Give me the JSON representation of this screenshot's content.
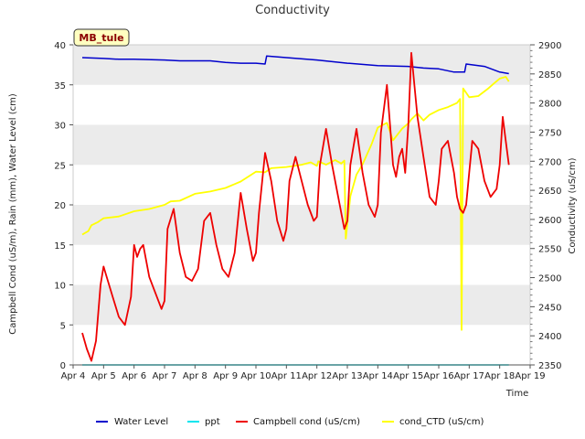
{
  "chart_data": {
    "type": "line",
    "title": "Conductivity",
    "station_label": "MB_tule",
    "xlabel": "Time",
    "ylabel_left": "Campbell Cond (uS/m), Rain (mm), Water Level (cm)",
    "ylabel_right": "Conductivity (uS/cm)",
    "x_range_days": [
      4,
      19
    ],
    "y_left_range": [
      0,
      40
    ],
    "y_right_range": [
      2350,
      2900
    ],
    "x_ticks": [
      {
        "day": 4,
        "label": "Apr 4"
      },
      {
        "day": 5,
        "label": "Apr 5"
      },
      {
        "day": 6,
        "label": "Apr 6"
      },
      {
        "day": 7,
        "label": "Apr 7"
      },
      {
        "day": 8,
        "label": "Apr 8"
      },
      {
        "day": 9,
        "label": "Apr 9"
      },
      {
        "day": 10,
        "label": "Apr 10"
      },
      {
        "day": 11,
        "label": "Apr 11"
      },
      {
        "day": 12,
        "label": "Apr 12"
      },
      {
        "day": 13,
        "label": "Apr 13"
      },
      {
        "day": 14,
        "label": "Apr 14"
      },
      {
        "day": 15,
        "label": "Apr 15"
      },
      {
        "day": 16,
        "label": "Apr 16"
      },
      {
        "day": 17,
        "label": "Apr 17"
      },
      {
        "day": 18,
        "label": "Apr 18"
      },
      {
        "day": 19,
        "label": "Apr 19"
      }
    ],
    "y_left_ticks": [
      0,
      5,
      10,
      15,
      20,
      25,
      30,
      35,
      40
    ],
    "y_right_ticks": [
      2350,
      2400,
      2450,
      2500,
      2550,
      2600,
      2650,
      2700,
      2750,
      2800,
      2850,
      2900
    ],
    "grid": "horizontal bands",
    "legend_position": "bottom",
    "colors": {
      "water_level": "#0000cc",
      "ppt": "#00e5ee",
      "campbell": "#ee0000",
      "cond_ctd": "#ffff00",
      "band": "#ebebeb",
      "station_bg": "#ffffc0"
    },
    "series": [
      {
        "name": "Water Level",
        "axis": "left",
        "color": "#0000cc",
        "x": [
          4.3,
          5.0,
          5.5,
          6.0,
          7.0,
          7.5,
          8.0,
          8.5,
          9.0,
          9.5,
          10.0,
          10.3,
          10.35,
          11.0,
          12.0,
          13.0,
          14.0,
          15.0,
          15.5,
          16.0,
          16.5,
          16.85,
          16.9,
          17.5,
          18.0,
          18.3
        ],
        "y": [
          38.4,
          38.3,
          38.2,
          38.2,
          38.1,
          38.0,
          38.0,
          38.0,
          37.8,
          37.7,
          37.7,
          37.6,
          38.6,
          38.4,
          38.1,
          37.7,
          37.4,
          37.3,
          37.1,
          37.0,
          36.6,
          36.6,
          37.6,
          37.3,
          36.6,
          36.4
        ]
      },
      {
        "name": "ppt",
        "axis": "left",
        "color": "#00e5ee",
        "x": [
          4.3,
          18.3
        ],
        "y": [
          0,
          0
        ]
      },
      {
        "name": "Campbell cond (uS/cm)",
        "axis": "left",
        "color": "#ee0000",
        "x": [
          4.3,
          4.45,
          4.6,
          4.75,
          4.9,
          5.0,
          5.1,
          5.3,
          5.5,
          5.7,
          5.9,
          6.0,
          6.1,
          6.2,
          6.3,
          6.5,
          6.7,
          6.9,
          7.0,
          7.1,
          7.3,
          7.5,
          7.7,
          7.9,
          8.1,
          8.3,
          8.5,
          8.7,
          8.9,
          9.1,
          9.3,
          9.5,
          9.7,
          9.9,
          10.0,
          10.1,
          10.3,
          10.5,
          10.7,
          10.9,
          11.0,
          11.1,
          11.3,
          11.5,
          11.7,
          11.9,
          12.0,
          12.1,
          12.3,
          12.5,
          12.7,
          12.9,
          13.0,
          13.1,
          13.3,
          13.5,
          13.7,
          13.9,
          14.0,
          14.1,
          14.3,
          14.4,
          14.5,
          14.6,
          14.7,
          14.8,
          14.9,
          15.0,
          15.1,
          15.3,
          15.5,
          15.7,
          15.9,
          16.0,
          16.1,
          16.3,
          16.5,
          16.6,
          16.7,
          16.8,
          16.9,
          17.0,
          17.1,
          17.3,
          17.5,
          17.7,
          17.9,
          18.0,
          18.1,
          18.2,
          18.3
        ],
        "y": [
          4.0,
          2.0,
          0.5,
          3.0,
          10.0,
          12.3,
          11.0,
          8.5,
          6.0,
          5.0,
          8.5,
          15.0,
          13.5,
          14.5,
          15.0,
          11.0,
          9.0,
          7.0,
          8.0,
          17.0,
          19.5,
          14.0,
          11.0,
          10.5,
          12.0,
          18.0,
          19.0,
          15.0,
          12.0,
          11.0,
          14.0,
          21.5,
          17.0,
          13.0,
          14.0,
          19.0,
          26.5,
          23.0,
          18.0,
          15.5,
          17.0,
          23.0,
          26.0,
          23.0,
          20.0,
          18.0,
          18.5,
          25.0,
          29.5,
          25.0,
          21.0,
          17.0,
          18.0,
          25.0,
          29.5,
          24.0,
          20.0,
          18.5,
          20.0,
          29.0,
          35.0,
          30.0,
          25.0,
          23.5,
          26.0,
          27.0,
          24.0,
          30.0,
          39.0,
          31.0,
          26.0,
          21.0,
          20.0,
          23.0,
          27.0,
          28.0,
          24.0,
          21.0,
          19.5,
          19.0,
          20.0,
          24.0,
          28.0,
          27.0,
          23.0,
          21.0,
          22.0,
          25.0,
          31.0,
          28.0,
          25.0
        ]
      },
      {
        "name": "cond_CTD (uS/cm)",
        "axis": "right",
        "color": "#ffff00",
        "x": [
          4.3,
          4.5,
          4.6,
          4.8,
          5.0,
          5.5,
          6.0,
          6.5,
          7.0,
          7.2,
          7.5,
          8.0,
          8.5,
          9.0,
          9.5,
          10.0,
          10.3,
          10.5,
          11.0,
          11.5,
          11.8,
          12.0,
          12.05,
          12.3,
          12.6,
          12.8,
          12.9,
          12.95,
          13.1,
          13.3,
          13.5,
          13.8,
          14.0,
          14.3,
          14.5,
          14.8,
          15.0,
          15.1,
          15.3,
          15.5,
          15.7,
          16.0,
          16.3,
          16.6,
          16.7,
          16.75,
          16.8,
          17.0,
          17.3,
          17.6,
          17.8,
          18.0,
          18.2,
          18.3
        ],
        "y": [
          2574,
          2580,
          2590,
          2595,
          2602,
          2605,
          2614,
          2618,
          2625,
          2631,
          2632,
          2644,
          2648,
          2654,
          2665,
          2682,
          2681,
          2688,
          2690,
          2694,
          2698,
          2692,
          2700,
          2694,
          2702,
          2696,
          2701,
          2567,
          2640,
          2677,
          2695,
          2730,
          2758,
          2766,
          2736,
          2756,
          2765,
          2772,
          2782,
          2770,
          2780,
          2788,
          2793,
          2800,
          2807,
          2410,
          2825,
          2810,
          2812,
          2824,
          2833,
          2842,
          2845,
          2837
        ]
      }
    ]
  }
}
